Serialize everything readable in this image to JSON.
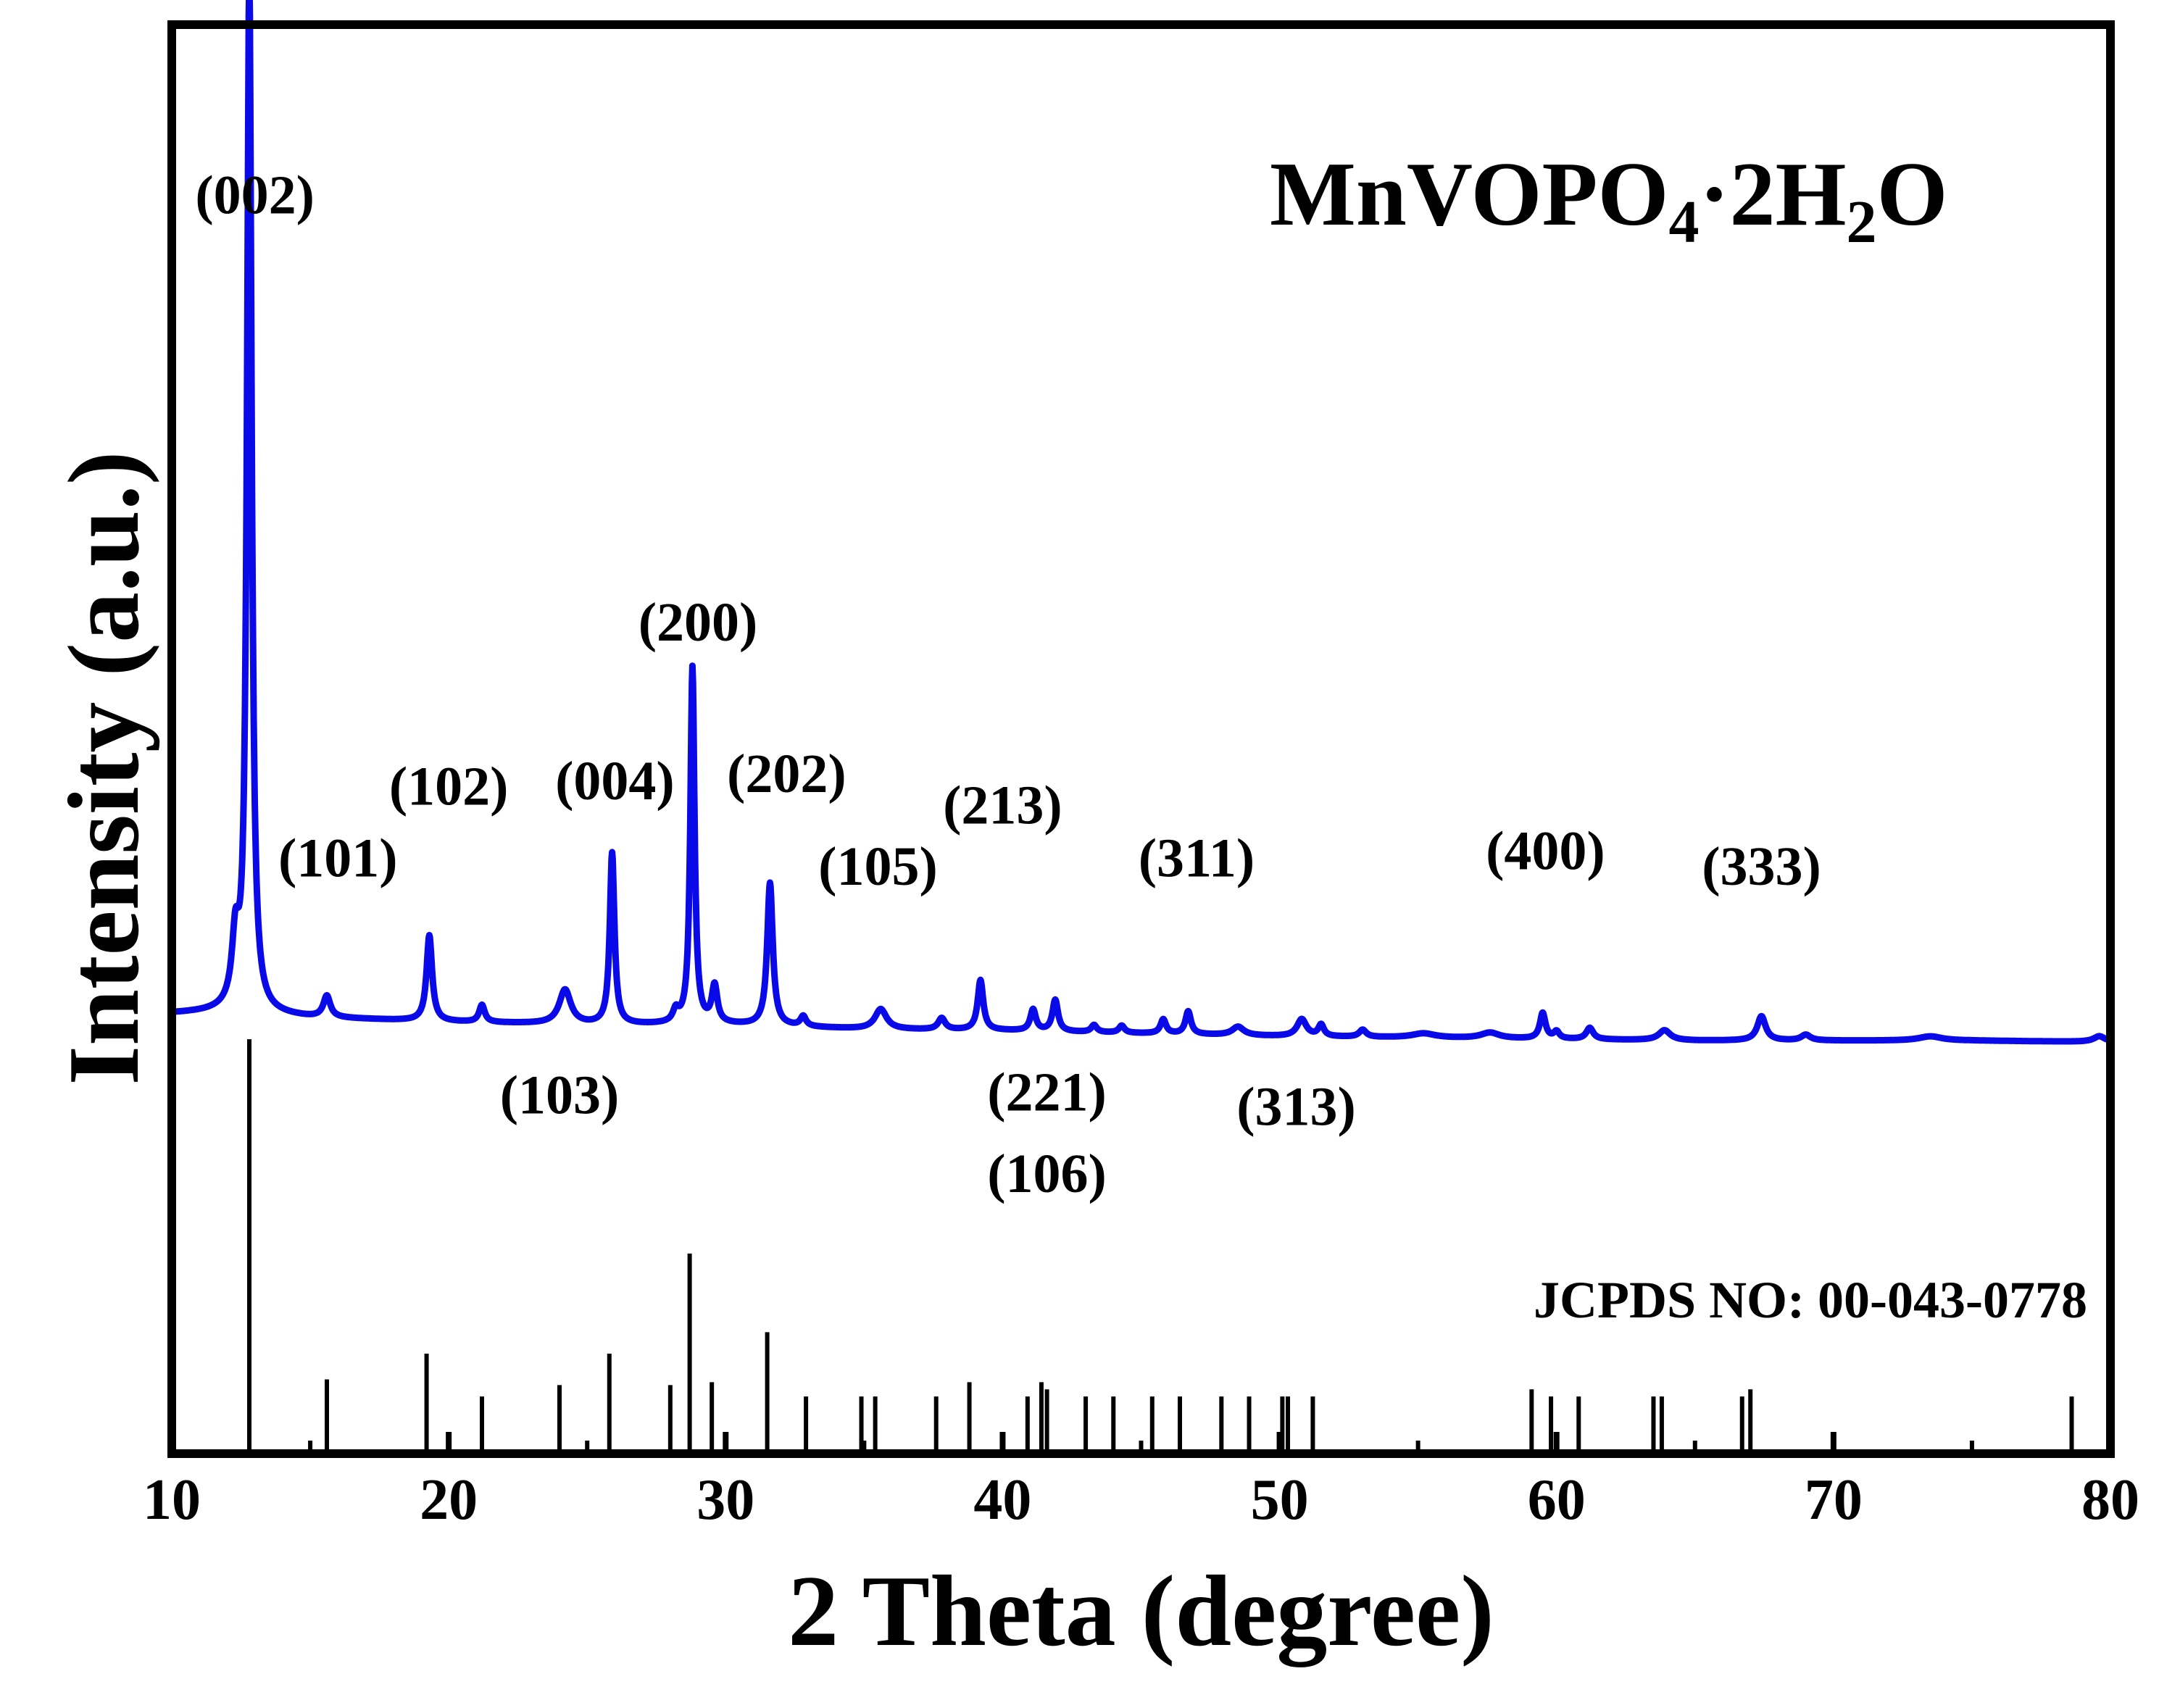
{
  "chart_data": {
    "type": "line",
    "title": "MnVOPO₄·2H₂O",
    "title_parts": {
      "main": "MnVOPO",
      "sub1": "4",
      "mid": "·2H",
      "sub2": "2",
      "end": "O"
    },
    "xlabel": "2 Theta (degree)",
    "ylabel": "Intensity (a.u.)",
    "xlim": [
      10,
      80
    ],
    "ylim": [
      0,
      100
    ],
    "xticks": [
      "10",
      "20",
      "30",
      "40",
      "50",
      "60",
      "70",
      "80"
    ],
    "grid": false,
    "series": [
      {
        "name": "MnVOPO4·2H2O",
        "color": "#0a0ae8",
        "baseline": [
          [
            10,
            30.8
          ],
          [
            12,
            30.9
          ],
          [
            15,
            30.5
          ],
          [
            20,
            30.2
          ],
          [
            25,
            30.0
          ],
          [
            30,
            30.0
          ],
          [
            35,
            29.7
          ],
          [
            40,
            29.6
          ],
          [
            45,
            29.4
          ],
          [
            50,
            29.2
          ],
          [
            55,
            29.1
          ],
          [
            60,
            29.0
          ],
          [
            65,
            28.9
          ],
          [
            70,
            28.9
          ],
          [
            75,
            28.9
          ],
          [
            80,
            28.8
          ]
        ],
        "peaks": [
          {
            "x": 12.3,
            "h": 4.5,
            "w": 0.15
          },
          {
            "x": 12.8,
            "h": 72.2,
            "w": 0.1
          },
          {
            "x": 15.6,
            "h": 1.5,
            "w": 0.15
          },
          {
            "x": 19.3,
            "h": 6.0,
            "w": 0.12
          },
          {
            "x": 21.2,
            "h": 1.2,
            "w": 0.12
          },
          {
            "x": 24.2,
            "h": 2.4,
            "w": 0.25
          },
          {
            "x": 25.9,
            "h": 12.0,
            "w": 0.1
          },
          {
            "x": 28.2,
            "h": 0.8,
            "w": 0.12
          },
          {
            "x": 28.8,
            "h": 25.0,
            "w": 0.09
          },
          {
            "x": 29.6,
            "h": 2.6,
            "w": 0.12
          },
          {
            "x": 31.6,
            "h": 10.0,
            "w": 0.12
          },
          {
            "x": 32.8,
            "h": 0.7,
            "w": 0.12
          },
          {
            "x": 35.6,
            "h": 1.4,
            "w": 0.25
          },
          {
            "x": 37.8,
            "h": 0.8,
            "w": 0.15
          },
          {
            "x": 39.2,
            "h": 3.5,
            "w": 0.12
          },
          {
            "x": 41.1,
            "h": 1.5,
            "w": 0.12
          },
          {
            "x": 41.9,
            "h": 2.2,
            "w": 0.12
          },
          {
            "x": 43.3,
            "h": 0.5,
            "w": 0.12
          },
          {
            "x": 44.3,
            "h": 0.5,
            "w": 0.12
          },
          {
            "x": 45.8,
            "h": 1.0,
            "w": 0.12
          },
          {
            "x": 46.7,
            "h": 1.6,
            "w": 0.12
          },
          {
            "x": 48.5,
            "h": 0.6,
            "w": 0.25
          },
          {
            "x": 50.8,
            "h": 1.2,
            "w": 0.2
          },
          {
            "x": 51.5,
            "h": 0.8,
            "w": 0.12
          },
          {
            "x": 53.0,
            "h": 0.5,
            "w": 0.15
          },
          {
            "x": 55.2,
            "h": 0.3,
            "w": 0.5
          },
          {
            "x": 57.6,
            "h": 0.4,
            "w": 0.4
          },
          {
            "x": 59.5,
            "h": 1.8,
            "w": 0.12
          },
          {
            "x": 60.0,
            "h": 0.5,
            "w": 0.12
          },
          {
            "x": 61.2,
            "h": 0.8,
            "w": 0.15
          },
          {
            "x": 63.9,
            "h": 0.7,
            "w": 0.25
          },
          {
            "x": 67.4,
            "h": 1.7,
            "w": 0.18
          },
          {
            "x": 69.0,
            "h": 0.4,
            "w": 0.2
          },
          {
            "x": 73.5,
            "h": 0.3,
            "w": 0.5
          },
          {
            "x": 79.6,
            "h": 0.4,
            "w": 0.25
          }
        ]
      }
    ],
    "reference": {
      "name": "JCPDS NO: 00-043-0778",
      "x": [
        12.8,
        15.6,
        19.2,
        21.2,
        24.0,
        25.8,
        28.0,
        28.7,
        29.5,
        31.5,
        32.9,
        34.9,
        35.4,
        37.6,
        38.8,
        40.9,
        41.4,
        41.6,
        43.0,
        44.0,
        45.4,
        46.4,
        47.9,
        48.9,
        50.1,
        50.3,
        51.2,
        59.1,
        59.8,
        60.8,
        63.5,
        63.8,
        66.7,
        67.0,
        78.6
      ],
      "values": [
        29.0,
        5.2,
        7.0,
        4.0,
        4.8,
        7.0,
        4.8,
        14.0,
        5.0,
        8.5,
        4.0,
        4.0,
        4.0,
        4.0,
        5.0,
        4.0,
        5.0,
        4.5,
        4.0,
        4.0,
        4.0,
        4.0,
        4.0,
        4.0,
        4.0,
        4.0,
        4.0,
        4.5,
        4.0,
        4.0,
        4.0,
        4.0,
        4.0,
        4.5,
        4.0
      ]
    },
    "annotations": [
      {
        "label": "(002)",
        "x": 13.0,
        "y": 86.8
      },
      {
        "label": "(101)",
        "x": 16.0,
        "y": 40.4
      },
      {
        "label": "(102)",
        "x": 20.0,
        "y": 45.4
      },
      {
        "label": "(004)",
        "x": 26.0,
        "y": 45.8
      },
      {
        "label": "(200)",
        "x": 29.0,
        "y": 56.9
      },
      {
        "label": "(202)",
        "x": 32.2,
        "y": 46.3
      },
      {
        "label": "(103)",
        "x": 24.0,
        "y": 23.8
      },
      {
        "label": "(105)",
        "x": 35.5,
        "y": 39.8
      },
      {
        "label": "(213)",
        "x": 40.0,
        "y": 44.1
      },
      {
        "label": "(221)",
        "x": 41.6,
        "y": 24.0
      },
      {
        "label": "(106)",
        "x": 41.6,
        "y": 18.3
      },
      {
        "label": "(311)",
        "x": 47.0,
        "y": 40.4
      },
      {
        "label": "(313)",
        "x": 50.6,
        "y": 23.0
      },
      {
        "label": "(400)",
        "x": 59.6,
        "y": 40.9
      },
      {
        "label": "(333)",
        "x": 67.4,
        "y": 39.8
      }
    ]
  }
}
